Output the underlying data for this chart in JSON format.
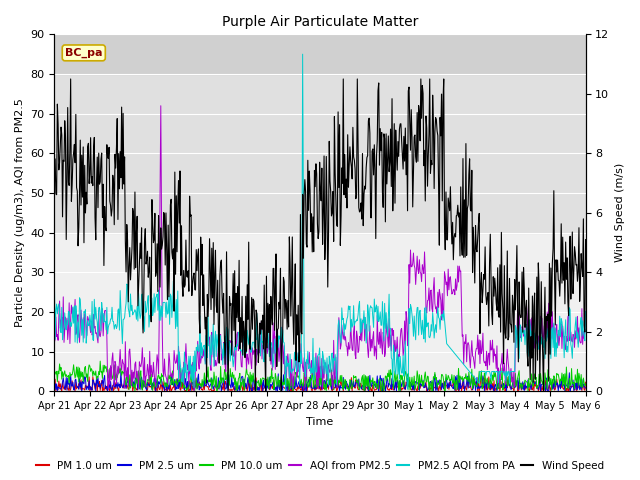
{
  "title": "Purple Air Particulate Matter",
  "ylabel_left": "Particle Density (ug/m3), AQI from PM2.5",
  "ylabel_right": "Wind Speed (m/s)",
  "xlabel": "Time",
  "ylim_left": [
    0,
    90
  ],
  "ylim_right": [
    0,
    12
  ],
  "annotation_text": "BC_pa",
  "x_tick_labels": [
    "Apr 21",
    "Apr 22",
    "Apr 23",
    "Apr 24",
    "Apr 25",
    "Apr 26",
    "Apr 27",
    "Apr 28",
    "Apr 29",
    "Apr 30",
    "May 1",
    "May 2",
    "May 3",
    "May 4",
    "May 5",
    "May 6"
  ],
  "n_points": 720,
  "colors": {
    "pm1": "#dd0000",
    "pm25": "#0000dd",
    "pm10": "#00cc00",
    "aqi_pm25": "#aa00cc",
    "pm25_pa": "#00cccc",
    "wind": "#000000"
  },
  "legend_labels": [
    "PM 1.0 um",
    "PM 2.5 um",
    "PM 10.0 um",
    "AQI from PM2.5",
    "PM2.5 AQI from PA",
    "Wind Speed"
  ],
  "bg_bands": [
    {
      "ymin": 0,
      "ymax": 40,
      "color": "#f0f0f0"
    },
    {
      "ymin": 40,
      "ymax": 80,
      "color": "#e0e0e0"
    },
    {
      "ymin": 80,
      "ymax": 90,
      "color": "#d0d0d0"
    }
  ],
  "grid_color": "#ffffff",
  "figsize": [
    6.4,
    4.8
  ],
  "dpi": 100
}
